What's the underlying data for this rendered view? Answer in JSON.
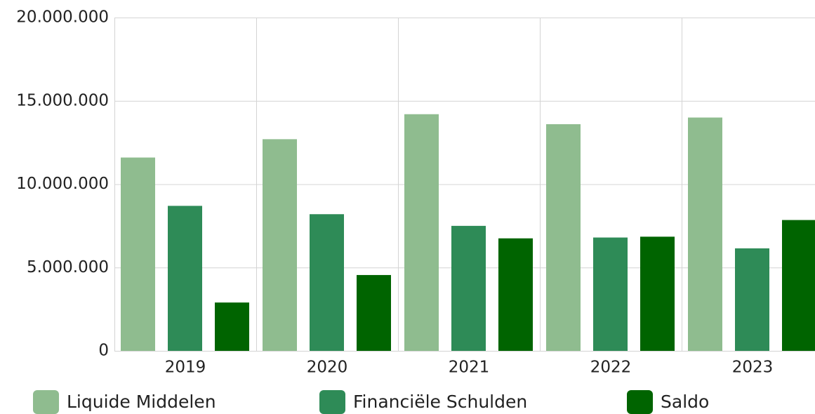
{
  "chart_data": {
    "type": "bar",
    "categories": [
      "2019",
      "2020",
      "2021",
      "2022",
      "2023"
    ],
    "series": [
      {
        "name": "Liquide Middelen",
        "color": "#8fbc8f",
        "values": [
          11600000,
          12700000,
          14200000,
          13600000,
          14000000
        ]
      },
      {
        "name": "Financiële Schulden",
        "color": "#2e8b57",
        "values": [
          8700000,
          8200000,
          7500000,
          6800000,
          6150000
        ]
      },
      {
        "name": "Saldo",
        "color": "#006400",
        "values": [
          2900000,
          4550000,
          6750000,
          6850000,
          7850000
        ]
      }
    ],
    "ylim": [
      0,
      20000000
    ],
    "yticks": [
      0,
      {
        "value": 5000000,
        "label": "5.000.000"
      },
      {
        "value": 10000000,
        "label": "10.000.000"
      },
      {
        "value": 15000000,
        "label": "15.000.000"
      },
      {
        "value": 20000000,
        "label": "20.000.000"
      }
    ],
    "grid": true,
    "legend": "bottom"
  }
}
